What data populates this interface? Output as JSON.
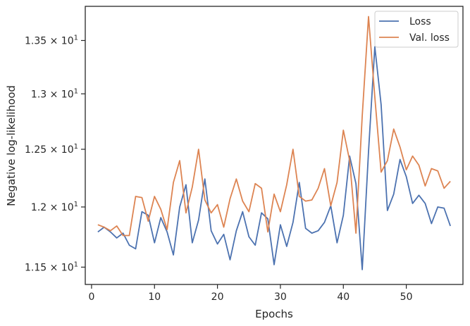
{
  "chart_data": {
    "type": "line",
    "xlabel": "Epochs",
    "ylabel": "Negative log-likelihood",
    "xlim": [
      -1,
      59
    ],
    "ylim": [
      11.36,
      13.83
    ],
    "y_scale": "log",
    "grid": false,
    "legend_position": "top-right",
    "x_ticks": [
      0,
      10,
      20,
      30,
      40,
      50
    ],
    "y_ticks": [
      11.5,
      12.0,
      12.5,
      13.0,
      13.5
    ],
    "y_tick_labels": [
      "1.15 × 10^1",
      "1.2 × 10^1",
      "1.25 × 10^1",
      "1.3 × 10^1",
      "1.35 × 10^1"
    ],
    "y_tick_mantissas": [
      "1.15",
      "1.2",
      "1.25",
      "1.3",
      "1.35"
    ],
    "y_tick_base": "10",
    "y_tick_exponent": "1",
    "x": [
      1,
      2,
      3,
      4,
      5,
      6,
      7,
      8,
      9,
      10,
      11,
      12,
      13,
      14,
      15,
      16,
      17,
      18,
      19,
      20,
      21,
      22,
      23,
      24,
      25,
      26,
      27,
      28,
      29,
      30,
      31,
      32,
      33,
      34,
      35,
      36,
      37,
      38,
      39,
      40,
      41,
      42,
      43,
      44,
      45,
      46,
      47,
      48,
      49,
      50,
      51,
      52,
      53,
      54,
      55,
      56,
      57
    ],
    "series": [
      {
        "name": "Loss",
        "color": "#4c72b0",
        "values": [
          11.79,
          11.83,
          11.79,
          11.74,
          11.78,
          11.68,
          11.65,
          11.96,
          11.93,
          11.7,
          11.91,
          11.79,
          11.6,
          12.0,
          12.19,
          11.7,
          11.89,
          12.24,
          11.8,
          11.69,
          11.77,
          11.56,
          11.8,
          11.96,
          11.75,
          11.68,
          11.95,
          11.9,
          11.52,
          11.85,
          11.67,
          11.87,
          12.21,
          11.82,
          11.78,
          11.8,
          11.87,
          12.01,
          11.7,
          11.93,
          12.44,
          12.2,
          11.48,
          12.48,
          13.44,
          12.9,
          11.97,
          12.11,
          12.41,
          12.26,
          12.03,
          12.1,
          12.03,
          11.86,
          12.0,
          11.99,
          11.84
        ]
      },
      {
        "name": "Val. loss",
        "color": "#dd8452",
        "values": [
          11.85,
          11.83,
          11.8,
          11.84,
          11.76,
          11.76,
          12.09,
          12.08,
          11.88,
          12.09,
          11.98,
          11.81,
          12.21,
          12.4,
          11.95,
          12.17,
          12.5,
          12.06,
          11.95,
          12.02,
          11.83,
          12.07,
          12.24,
          12.05,
          11.96,
          12.2,
          12.16,
          11.79,
          12.11,
          11.96,
          12.19,
          12.5,
          12.09,
          12.05,
          12.06,
          12.16,
          12.33,
          12.01,
          12.21,
          12.67,
          12.4,
          11.78,
          12.8,
          13.73,
          12.97,
          12.3,
          12.4,
          12.68,
          12.52,
          12.32,
          12.44,
          12.36,
          12.18,
          12.33,
          12.31,
          12.16,
          12.22
        ]
      }
    ]
  }
}
